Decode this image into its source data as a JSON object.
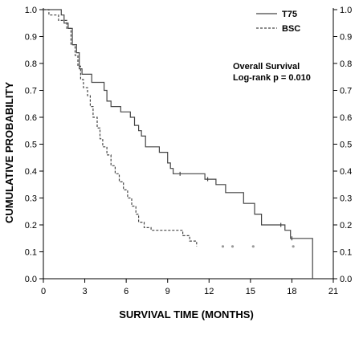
{
  "chart_data": {
    "type": "line",
    "xlabel": "SURVIVAL TIME (MONTHS)",
    "ylabel": "CUMULATIVE PROBABILITY",
    "xlim": [
      0,
      21
    ],
    "ylim": [
      0,
      1.0
    ],
    "xticks": [
      "0",
      "3",
      "6",
      "9",
      "12",
      "15",
      "18",
      "21"
    ],
    "yticks": [
      "0.0",
      "0.1",
      "0.2",
      "0.3",
      "0.4",
      "0.5",
      "0.6",
      "0.7",
      "0.8",
      "0.9",
      "1.0"
    ],
    "legend_position": "top-right",
    "annotation": [
      "Overall Survival",
      "Log-rank p = 0.010"
    ],
    "series": [
      {
        "name": "T75",
        "style": "solid",
        "color": "#444444",
        "points": [
          [
            0,
            1.0
          ],
          [
            1.3,
            1.0
          ],
          [
            1.3,
            0.98
          ],
          [
            1.5,
            0.98
          ],
          [
            1.5,
            0.95
          ],
          [
            1.8,
            0.95
          ],
          [
            1.8,
            0.93
          ],
          [
            2.1,
            0.93
          ],
          [
            2.1,
            0.87
          ],
          [
            2.4,
            0.87
          ],
          [
            2.4,
            0.84
          ],
          [
            2.6,
            0.84
          ],
          [
            2.6,
            0.78
          ],
          [
            2.8,
            0.78
          ],
          [
            2.8,
            0.76
          ],
          [
            3.5,
            0.76
          ],
          [
            3.5,
            0.73
          ],
          [
            4.4,
            0.73
          ],
          [
            4.4,
            0.7
          ],
          [
            4.6,
            0.7
          ],
          [
            4.6,
            0.66
          ],
          [
            4.9,
            0.66
          ],
          [
            4.9,
            0.64
          ],
          [
            5.6,
            0.64
          ],
          [
            5.6,
            0.62
          ],
          [
            6.3,
            0.62
          ],
          [
            6.3,
            0.6
          ],
          [
            6.6,
            0.6
          ],
          [
            6.6,
            0.57
          ],
          [
            6.9,
            0.57
          ],
          [
            6.9,
            0.55
          ],
          [
            7.1,
            0.55
          ],
          [
            7.1,
            0.53
          ],
          [
            7.4,
            0.53
          ],
          [
            7.4,
            0.49
          ],
          [
            8.4,
            0.49
          ],
          [
            8.4,
            0.47
          ],
          [
            9.0,
            0.47
          ],
          [
            9.0,
            0.43
          ],
          [
            9.2,
            0.43
          ],
          [
            9.2,
            0.41
          ],
          [
            9.4,
            0.41
          ],
          [
            9.4,
            0.39
          ],
          [
            11.7,
            0.39
          ],
          [
            11.7,
            0.37
          ],
          [
            12.5,
            0.37
          ],
          [
            12.5,
            0.35
          ],
          [
            13.2,
            0.35
          ],
          [
            13.2,
            0.32
          ],
          [
            14.5,
            0.32
          ],
          [
            14.5,
            0.28
          ],
          [
            15.3,
            0.28
          ],
          [
            15.3,
            0.24
          ],
          [
            15.8,
            0.24
          ],
          [
            15.8,
            0.2
          ],
          [
            17.5,
            0.2
          ],
          [
            17.5,
            0.18
          ],
          [
            17.9,
            0.18
          ],
          [
            17.9,
            0.15
          ],
          [
            19.5,
            0.15
          ],
          [
            19.5,
            0.0
          ]
        ],
        "censored": [
          [
            9.9,
            0.39
          ],
          [
            11.9,
            0.37
          ],
          [
            17.2,
            0.2
          ],
          [
            18.0,
            0.15
          ]
        ]
      },
      {
        "name": "BSC",
        "style": "dashed",
        "color": "#444444",
        "points": [
          [
            0,
            1.0
          ],
          [
            0.4,
            1.0
          ],
          [
            0.4,
            0.98
          ],
          [
            1.1,
            0.98
          ],
          [
            1.1,
            0.96
          ],
          [
            1.7,
            0.96
          ],
          [
            1.7,
            0.93
          ],
          [
            2.0,
            0.93
          ],
          [
            2.0,
            0.87
          ],
          [
            2.3,
            0.87
          ],
          [
            2.3,
            0.83
          ],
          [
            2.5,
            0.83
          ],
          [
            2.5,
            0.79
          ],
          [
            2.7,
            0.79
          ],
          [
            2.7,
            0.74
          ],
          [
            2.9,
            0.74
          ],
          [
            2.9,
            0.71
          ],
          [
            3.2,
            0.71
          ],
          [
            3.2,
            0.68
          ],
          [
            3.4,
            0.68
          ],
          [
            3.4,
            0.64
          ],
          [
            3.6,
            0.64
          ],
          [
            3.6,
            0.6
          ],
          [
            3.9,
            0.6
          ],
          [
            3.9,
            0.56
          ],
          [
            4.1,
            0.56
          ],
          [
            4.1,
            0.52
          ],
          [
            4.3,
            0.52
          ],
          [
            4.3,
            0.49
          ],
          [
            4.6,
            0.49
          ],
          [
            4.6,
            0.46
          ],
          [
            4.9,
            0.46
          ],
          [
            4.9,
            0.42
          ],
          [
            5.2,
            0.42
          ],
          [
            5.2,
            0.39
          ],
          [
            5.5,
            0.39
          ],
          [
            5.5,
            0.36
          ],
          [
            5.8,
            0.36
          ],
          [
            5.8,
            0.33
          ],
          [
            6.1,
            0.33
          ],
          [
            6.1,
            0.3
          ],
          [
            6.4,
            0.3
          ],
          [
            6.4,
            0.27
          ],
          [
            6.7,
            0.27
          ],
          [
            6.7,
            0.24
          ],
          [
            6.9,
            0.24
          ],
          [
            6.9,
            0.21
          ],
          [
            7.3,
            0.21
          ],
          [
            7.3,
            0.19
          ],
          [
            7.8,
            0.19
          ],
          [
            7.8,
            0.18
          ],
          [
            10.1,
            0.18
          ],
          [
            10.1,
            0.16
          ],
          [
            10.6,
            0.16
          ],
          [
            10.6,
            0.14
          ],
          [
            11.1,
            0.14
          ],
          [
            11.1,
            0.12
          ]
        ],
        "censored": [
          [
            13.0,
            0.12
          ],
          [
            13.7,
            0.12
          ],
          [
            15.2,
            0.12
          ],
          [
            18.1,
            0.12
          ]
        ]
      }
    ]
  }
}
